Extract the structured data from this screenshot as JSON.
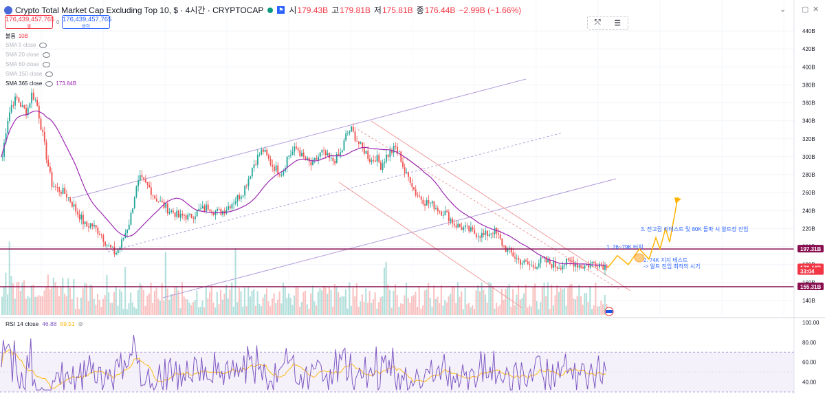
{
  "header": {
    "title": "Crypto Total Market Cap Excluding Top 10, $ · 4시간 · CRYPTOCAP",
    "open_label": "시",
    "open_value": "179.43B",
    "high_label": "고",
    "high_value": "179.81B",
    "low_label": "저",
    "low_value": "175.81B",
    "close_label": "종",
    "close_value": "176.44B",
    "change": "−2.99B (−1.66%)"
  },
  "sell_box": {
    "price": "176,439,457,765",
    "label": "셀"
  },
  "buy_box": {
    "price": "176,439,457,765",
    "label": "바이"
  },
  "spread": "0",
  "indicators": {
    "volume_label": "볼륨",
    "volume_value": "10B",
    "sma5": "SMA 5 close",
    "sma20": "SMA 20 close",
    "sma60": "SMA 60 close",
    "sma150": "SMA 150 close",
    "sma365": "SMA 365 close",
    "sma365_value": "173.84B"
  },
  "rsi": {
    "label": "RSI 14 close",
    "value1": "46.88",
    "value2": "59.51"
  },
  "price_axis": {
    "ticks": [
      "440B",
      "420B",
      "400B",
      "380B",
      "360B",
      "340B",
      "320B",
      "300B",
      "280B",
      "260B",
      "240B",
      "220B",
      "200B",
      "180B",
      "160B",
      "140B"
    ],
    "markers": [
      {
        "label": "197.31B",
        "value": 197.31,
        "color": "#880e4f"
      },
      {
        "label": "176.44B",
        "value": 176.44,
        "color": "#f23645"
      },
      {
        "label": "33:04",
        "value": 172.4,
        "color": "#f23645"
      },
      {
        "label": "155.31B",
        "value": 155.31,
        "color": "#880e4f"
      }
    ]
  },
  "rsi_axis": {
    "ticks": [
      "100.00",
      "80.00",
      "60.00",
      "40.00"
    ]
  },
  "annotations": {
    "a1": "1. 76~79K 터치",
    "a2": "2. 74K 지지 테스트",
    "a2b": "-> 알트 진입 최적의 시기",
    "a3": "3. 전고점 리테스트 및 80K 돌파 시 알트장 진입"
  },
  "chart_data": {
    "type": "candlestick",
    "price_range": [
      130,
      450
    ],
    "horizontal_levels": [
      197.31,
      155.31
    ],
    "close_trace": [
      300,
      340,
      360,
      365,
      355,
      350,
      370,
      360,
      330,
      300,
      270,
      265,
      262,
      258,
      250,
      240,
      232,
      222,
      225,
      220,
      215,
      205,
      198,
      192,
      200,
      215,
      230,
      260,
      275,
      270,
      265,
      255,
      250,
      245,
      240,
      238,
      232,
      235,
      232,
      236,
      240,
      242,
      245,
      240,
      238,
      240,
      245,
      250,
      255,
      262,
      275,
      290,
      300,
      308,
      298,
      290,
      285,
      282,
      300,
      305,
      310,
      300,
      295,
      290,
      298,
      305,
      300,
      295,
      298,
      305,
      325,
      330,
      320,
      310,
      305,
      295,
      300,
      290,
      300,
      305,
      310,
      300,
      280,
      275,
      260,
      255,
      250,
      248,
      245,
      240,
      238,
      232,
      225,
      222,
      220,
      218,
      215,
      214,
      212,
      215,
      218,
      210,
      200,
      195,
      190,
      185,
      182,
      180,
      178,
      182,
      185,
      182,
      180,
      178,
      180,
      182,
      183,
      180,
      178,
      179,
      181,
      182,
      180,
      176.44
    ],
    "rsi_range": [
      30,
      100
    ],
    "rsi_bands": [
      70,
      30
    ],
    "projection": [
      176.44,
      190,
      180,
      197.31,
      186,
      210,
      197.31,
      220,
      205,
      255
    ]
  }
}
